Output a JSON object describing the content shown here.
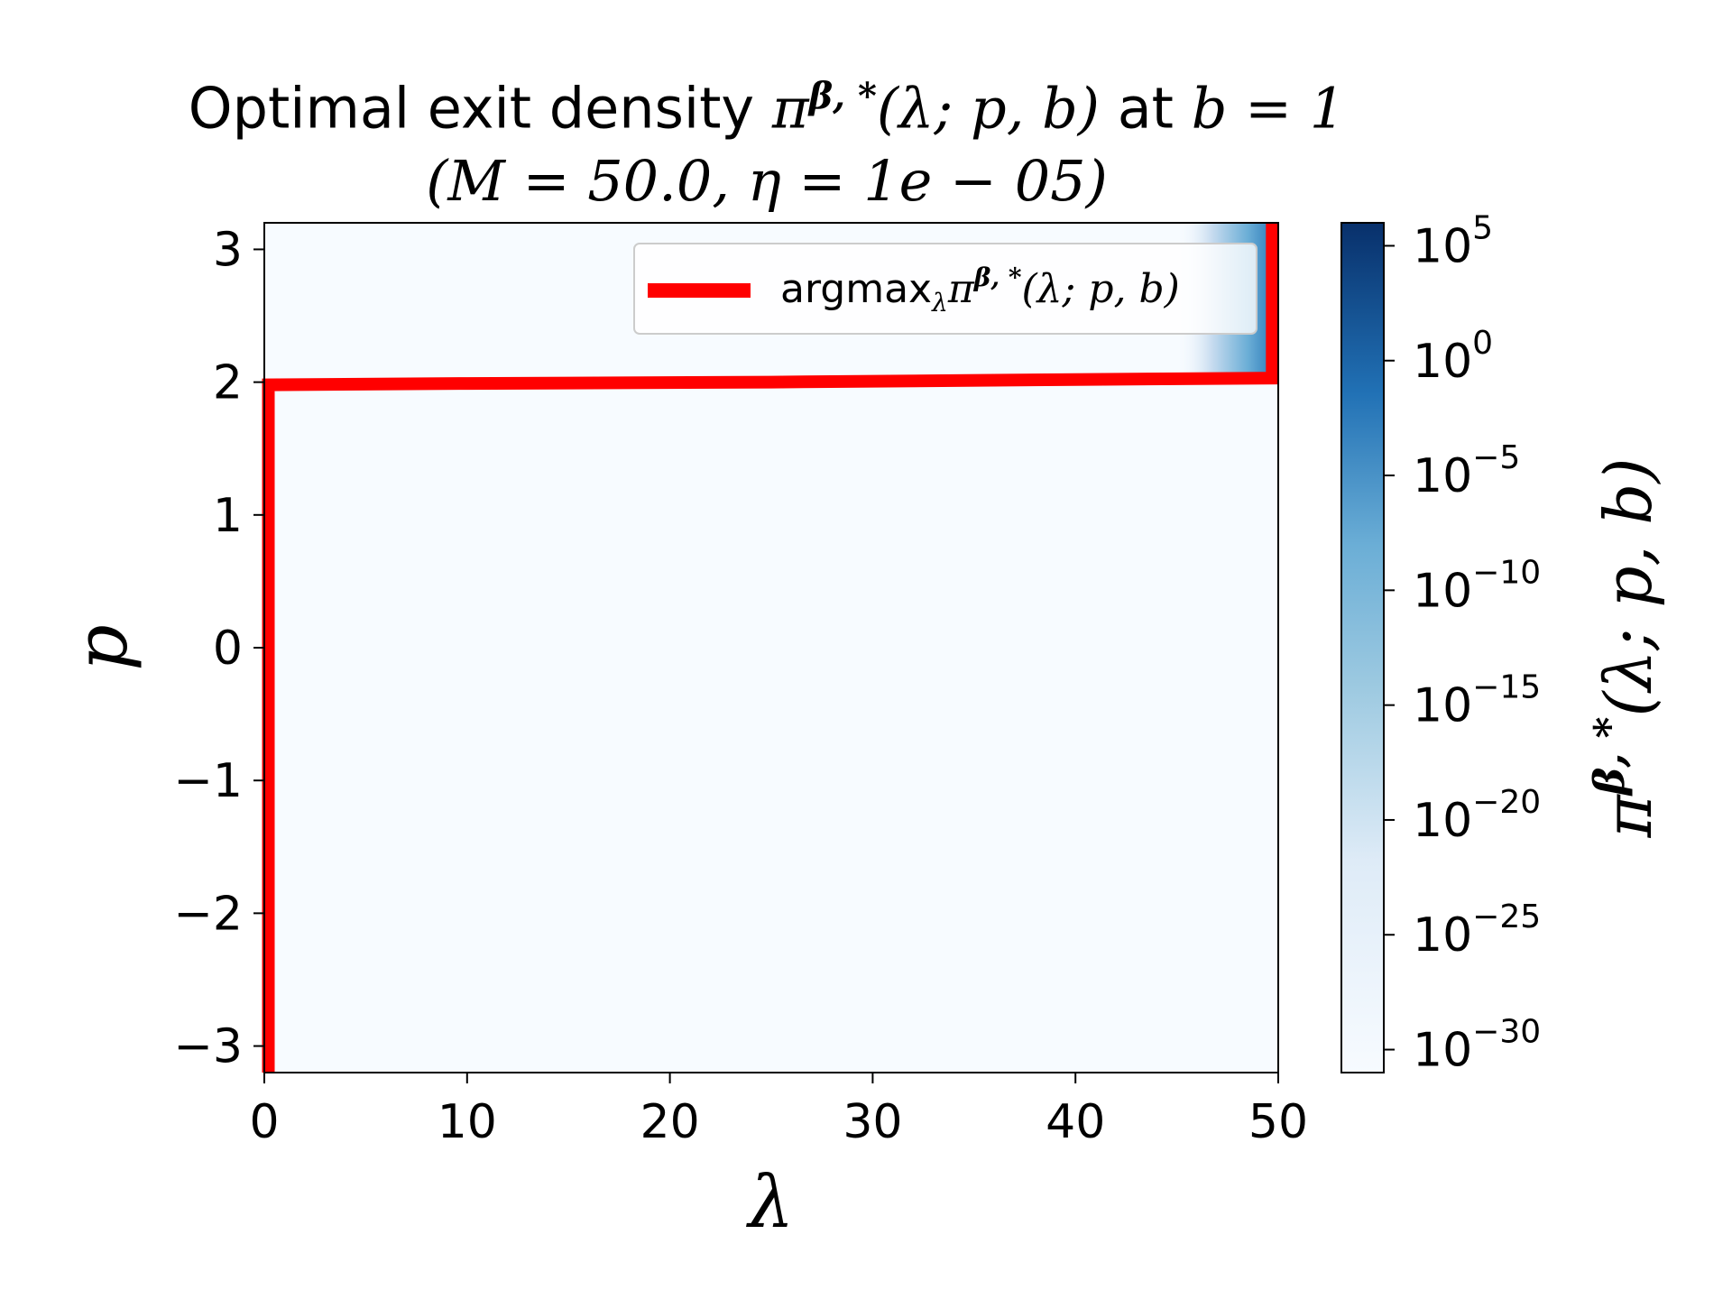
{
  "figure": {
    "title_line1_prefix": "Optimal exit density ",
    "title_line1_math": "π",
    "title_line1_sup": "β, *",
    "title_line1_args": "(λ; p, b)",
    "title_line1_mid": " at ",
    "title_line1_cond": "b = 1",
    "title_line2": "(M = 50.0, η = 1e − 05)",
    "legend_label": "argmax",
    "legend_sub": "λ",
    "legend_math": "π",
    "legend_sup": "β, *",
    "legend_args": "(λ; p, b)",
    "colorbar_label": "π",
    "colorbar_sup": "β, *",
    "colorbar_args": "(λ; p, b)",
    "colors": {
      "argmax_line": "#ff0000",
      "cmap_low": "#f7fbff",
      "cmap_high": "#08306b"
    }
  },
  "chart_data": {
    "type": "heatmap",
    "colormap": "Blues",
    "color_scale": "log",
    "xlabel": "λ",
    "ylabel": "p",
    "xlim": [
      0,
      50
    ],
    "ylim": [
      -3.2,
      3.2
    ],
    "xticks": [
      0,
      10,
      20,
      30,
      40,
      50
    ],
    "xtick_labels": [
      "0",
      "10",
      "20",
      "30",
      "40",
      "50"
    ],
    "yticks": [
      3,
      2,
      1,
      0,
      -1,
      -2,
      -3
    ],
    "ytick_labels": [
      "3",
      "2",
      "1",
      "0",
      "−1",
      "−2",
      "−3"
    ],
    "colorbar": {
      "ticks": [
        {
          "base": "10",
          "exp": "5"
        },
        {
          "base": "10",
          "exp": "0"
        },
        {
          "base": "10",
          "exp": "−5"
        },
        {
          "base": "10",
          "exp": "−10"
        },
        {
          "base": "10",
          "exp": "−15"
        },
        {
          "base": "10",
          "exp": "−20"
        },
        {
          "base": "10",
          "exp": "−25"
        },
        {
          "base": "10",
          "exp": "−30"
        }
      ],
      "exponents": [
        5,
        0,
        -5,
        -10,
        -15,
        -20,
        -25,
        -30
      ],
      "range_exp": [
        -31,
        6
      ]
    },
    "heat_region": {
      "lambda_from": 45,
      "lambda_to": 50,
      "p_from": 2.05,
      "p_to": 3.2
    },
    "series": [
      {
        "name": "argmax_λ π^{β,*}(λ; p, b)",
        "color": "#ff0000",
        "points": [
          {
            "lambda": 0.2,
            "p": -3.2
          },
          {
            "lambda": 0.2,
            "p": 1.98
          },
          {
            "lambda": 10,
            "p": 1.99
          },
          {
            "lambda": 25,
            "p": 2.0
          },
          {
            "lambda": 40,
            "p": 2.02
          },
          {
            "lambda": 49.7,
            "p": 2.03
          },
          {
            "lambda": 49.7,
            "p": 3.2
          }
        ]
      }
    ],
    "legend_position": "upper-right"
  }
}
